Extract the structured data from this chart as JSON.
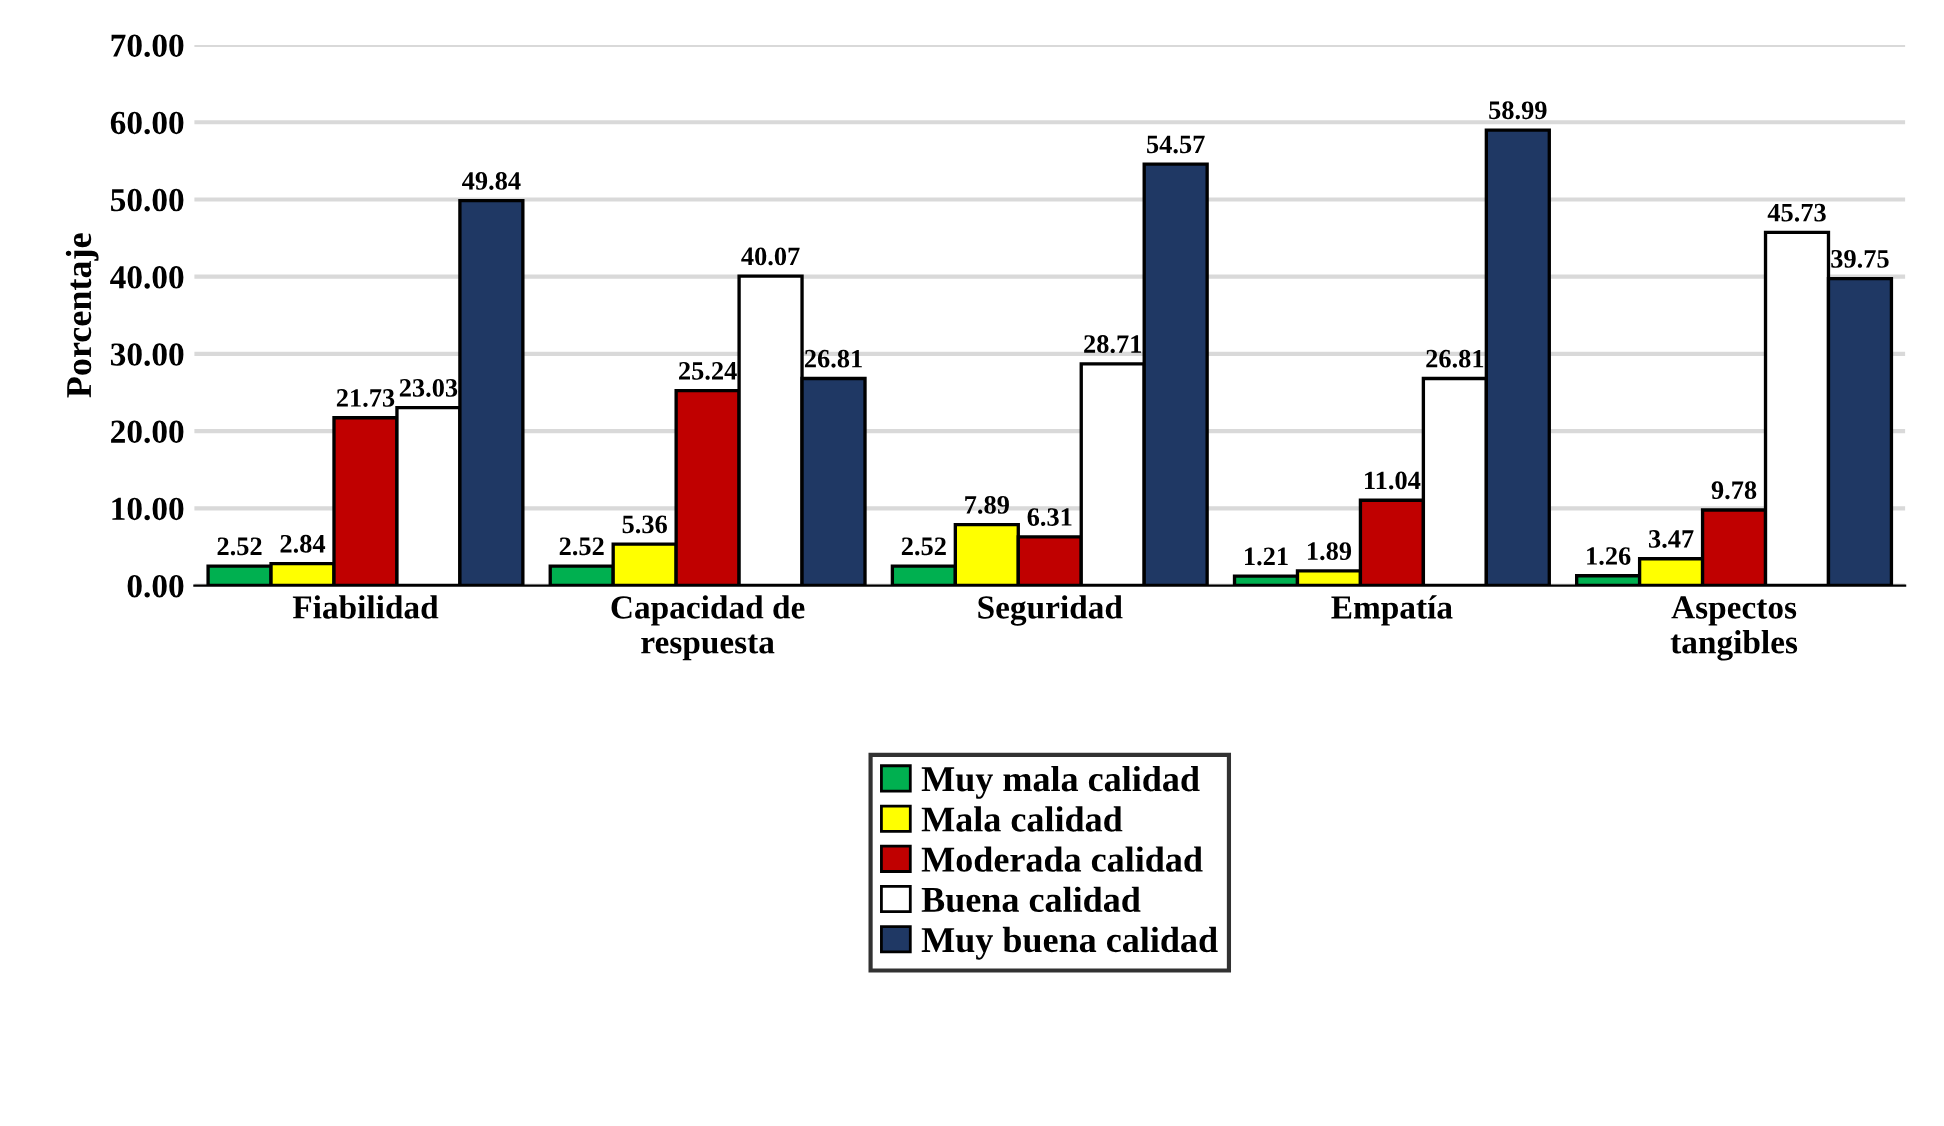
{
  "chart_data": {
    "type": "bar",
    "ylabel": "Porcentaje",
    "categories": [
      "Fiabilidad",
      "Capacidad de\nrespuesta",
      "Seguridad",
      "Empatía",
      "Aspectos\ntangibles"
    ],
    "series": [
      {
        "name": "Muy mala calidad",
        "color": "#00b050",
        "values": [
          2.52,
          2.52,
          2.52,
          1.21,
          1.26
        ]
      },
      {
        "name": "Mala calidad",
        "color": "#ffff00",
        "values": [
          2.84,
          5.36,
          7.89,
          1.89,
          3.47
        ]
      },
      {
        "name": "Moderada calidad",
        "color": "#c00000",
        "values": [
          21.73,
          25.24,
          6.31,
          11.04,
          9.78
        ]
      },
      {
        "name": "Buena calidad",
        "color": "#ffffff",
        "values": [
          23.03,
          40.07,
          28.71,
          26.81,
          45.73
        ]
      },
      {
        "name": "Muy buena calidad",
        "color": "#1f3864",
        "values": [
          49.84,
          26.81,
          54.57,
          58.99,
          39.75
        ]
      }
    ],
    "ylim": [
      0,
      70
    ],
    "yticks": [
      {
        "value": 0,
        "label": "0.00"
      },
      {
        "value": 10,
        "label": "10.00"
      },
      {
        "value": 20,
        "label": "20.00"
      },
      {
        "value": 30,
        "label": "30.00"
      },
      {
        "value": 40,
        "label": "40.00"
      },
      {
        "value": 50,
        "label": "50.00"
      },
      {
        "value": 60,
        "label": "60.00"
      },
      {
        "value": 70,
        "label": "70.00"
      }
    ],
    "grid": "y",
    "legend": "bottom",
    "data_labels": true
  }
}
